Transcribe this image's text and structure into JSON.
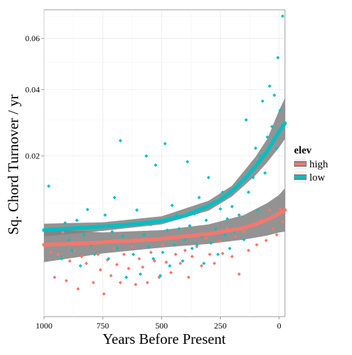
{
  "chart_data": {
    "type": "scatter",
    "xlabel": "Years Before Present",
    "ylabel": "Sq. Chord Turnover / yr",
    "x_reversed": true,
    "xlim": [
      1000,
      -25
    ],
    "x_ticks": [
      1000,
      750,
      500,
      250,
      0
    ],
    "x_tick_labels": [
      "1000",
      "750",
      "500",
      "250",
      "0"
    ],
    "y_scale": "sqrt",
    "ylim": [
      0,
      0.073
    ],
    "y_ticks": [
      0.02,
      0.04,
      0.06
    ],
    "y_tick_labels": [
      "0.02",
      "0.04",
      "0.06"
    ],
    "grid": true,
    "legend": {
      "title": "elev",
      "position": "right"
    },
    "series": [
      {
        "name": "high",
        "color": "#F8766D",
        "points": [
          [
            970,
            0.0032
          ],
          [
            955,
            0.0012
          ],
          [
            940,
            0.003
          ],
          [
            920,
            0.0055
          ],
          [
            905,
            0.001
          ],
          [
            890,
            0.0024
          ],
          [
            870,
            0.0034
          ],
          [
            855,
            0.0006
          ],
          [
            840,
            0.0028
          ],
          [
            820,
            0.0022
          ],
          [
            800,
            0.0042
          ],
          [
            790,
            0.0009
          ],
          [
            770,
            0.003
          ],
          [
            760,
            0.0017
          ],
          [
            745,
            0.0004
          ],
          [
            730,
            0.0025
          ],
          [
            715,
            0.0013
          ],
          [
            700,
            0.0036
          ],
          [
            690,
            0.0021
          ],
          [
            675,
            0.0009
          ],
          [
            660,
            0.003
          ],
          [
            640,
            0.0018
          ],
          [
            625,
            0.0038
          ],
          [
            610,
            0.0008
          ],
          [
            595,
            0.0026
          ],
          [
            580,
            0.0019
          ],
          [
            560,
            0.0009
          ],
          [
            545,
            0.0032
          ],
          [
            530,
            0.0024
          ],
          [
            510,
            0.0012
          ],
          [
            495,
            0.004
          ],
          [
            480,
            0.0023
          ],
          [
            460,
            0.0015
          ],
          [
            440,
            0.003
          ],
          [
            420,
            0.0022
          ],
          [
            400,
            0.0034
          ],
          [
            385,
            0.0012
          ],
          [
            370,
            0.0028
          ],
          [
            350,
            0.0038
          ],
          [
            330,
            0.002
          ],
          [
            310,
            0.0048
          ],
          [
            295,
            0.003
          ],
          [
            275,
            0.0022
          ],
          [
            255,
            0.0044
          ],
          [
            240,
            0.0031
          ],
          [
            220,
            0.006
          ],
          [
            200,
            0.0028
          ],
          [
            185,
            0.005
          ],
          [
            170,
            0.0014
          ],
          [
            150,
            0.0056
          ],
          [
            130,
            0.0034
          ],
          [
            110,
            0.0066
          ],
          [
            95,
            0.004
          ],
          [
            75,
            0.0072
          ],
          [
            55,
            0.0045
          ],
          [
            40,
            0.0088
          ],
          [
            25,
            0.006
          ],
          [
            10,
            0.0052
          ],
          [
            -5,
            0.009
          ],
          [
            -15,
            0.007
          ]
        ],
        "trend": [
          [
            1000,
            0.004
          ],
          [
            900,
            0.0041
          ],
          [
            800,
            0.0042
          ],
          [
            700,
            0.0044
          ],
          [
            600,
            0.0045
          ],
          [
            500,
            0.0047
          ],
          [
            400,
            0.005
          ],
          [
            300,
            0.0053
          ],
          [
            200,
            0.0058
          ],
          [
            150,
            0.0061
          ],
          [
            100,
            0.0066
          ],
          [
            50,
            0.0073
          ],
          [
            0,
            0.0082
          ],
          [
            -25,
            0.0088
          ]
        ],
        "band": [
          [
            1000,
            0.0023,
            0.006
          ],
          [
            750,
            0.0031,
            0.0055
          ],
          [
            500,
            0.0037,
            0.0058
          ],
          [
            300,
            0.0041,
            0.0066
          ],
          [
            150,
            0.0046,
            0.008
          ],
          [
            50,
            0.0051,
            0.01
          ],
          [
            0,
            0.0055,
            0.0115
          ],
          [
            -25,
            0.0056,
            0.0128
          ]
        ]
      },
      {
        "name": "low",
        "color": "#00BFC4",
        "points": [
          [
            980,
            0.0132
          ],
          [
            960,
            0.004
          ],
          [
            940,
            0.0058
          ],
          [
            925,
            0.0026
          ],
          [
            910,
            0.0068
          ],
          [
            895,
            0.0046
          ],
          [
            880,
            0.0034
          ],
          [
            860,
            0.0072
          ],
          [
            845,
            0.002
          ],
          [
            830,
            0.0052
          ],
          [
            815,
            0.0089
          ],
          [
            800,
            0.004
          ],
          [
            785,
            0.003
          ],
          [
            770,
            0.0064
          ],
          [
            755,
            0.0044
          ],
          [
            740,
            0.008
          ],
          [
            725,
            0.0026
          ],
          [
            710,
            0.0056
          ],
          [
            700,
            0.011
          ],
          [
            690,
            0.0036
          ],
          [
            675,
            0.024
          ],
          [
            665,
            0.005
          ],
          [
            650,
            0.0012
          ],
          [
            635,
            0.0046
          ],
          [
            620,
            0.003
          ],
          [
            605,
            0.0088
          ],
          [
            590,
            0.0014
          ],
          [
            575,
            0.0052
          ],
          [
            565,
            0.02
          ],
          [
            555,
            0.0038
          ],
          [
            545,
            0.0066
          ],
          [
            535,
            0.0026
          ],
          [
            525,
            0.0178
          ],
          [
            515,
            0.0048
          ],
          [
            505,
            0.0013
          ],
          [
            495,
            0.0032
          ],
          [
            485,
            0.0232
          ],
          [
            475,
            0.0058
          ],
          [
            465,
            0.002
          ],
          [
            455,
            0.0096
          ],
          [
            445,
            0.004
          ],
          [
            435,
            0.008
          ],
          [
            425,
            0.006
          ],
          [
            410,
            0.0024
          ],
          [
            400,
            0.0046
          ],
          [
            390,
            0.0186
          ],
          [
            380,
            0.0064
          ],
          [
            370,
            0.0036
          ],
          [
            360,
            0.0082
          ],
          [
            350,
            0.004
          ],
          [
            340,
            0.011
          ],
          [
            330,
            0.005
          ],
          [
            320,
            0.0022
          ],
          [
            310,
            0.0072
          ],
          [
            300,
            0.015
          ],
          [
            290,
            0.0042
          ],
          [
            280,
            0.01
          ],
          [
            270,
            0.006
          ],
          [
            260,
            0.003
          ],
          [
            250,
            0.009
          ],
          [
            240,
            0.012
          ],
          [
            230,
            0.0052
          ],
          [
            220,
            0.0074
          ],
          [
            210,
            0.0036
          ],
          [
            200,
            0.0094
          ],
          [
            190,
            0.0056
          ],
          [
            180,
            0.013
          ],
          [
            170,
            0.008
          ],
          [
            160,
            0.014
          ],
          [
            150,
            0.0046
          ],
          [
            140,
            0.03
          ],
          [
            130,
            0.012
          ],
          [
            120,
            0.0064
          ],
          [
            110,
            0.015
          ],
          [
            100,
            0.022
          ],
          [
            90,
            0.0088
          ],
          [
            80,
            0.02
          ],
          [
            70,
            0.036
          ],
          [
            60,
            0.016
          ],
          [
            50,
            0.025
          ],
          [
            40,
            0.0412
          ],
          [
            30,
            0.028
          ],
          [
            20,
            0.038
          ],
          [
            10,
            0.022
          ],
          [
            5,
            0.052
          ],
          [
            -5,
            0.033
          ],
          [
            -15,
            0.07
          ]
        ],
        "trend": [
          [
            1000,
            0.0058
          ],
          [
            900,
            0.006
          ],
          [
            800,
            0.0062
          ],
          [
            700,
            0.0064
          ],
          [
            600,
            0.0067
          ],
          [
            500,
            0.0071
          ],
          [
            400,
            0.0079
          ],
          [
            300,
            0.0095
          ],
          [
            250,
            0.0106
          ],
          [
            200,
            0.0122
          ],
          [
            150,
            0.0145
          ],
          [
            100,
            0.0175
          ],
          [
            50,
            0.0212
          ],
          [
            25,
            0.0238
          ],
          [
            0,
            0.0265
          ],
          [
            -25,
            0.029
          ]
        ],
        "band": [
          [
            1000,
            0.005,
            0.0067
          ],
          [
            750,
            0.0057,
            0.0069
          ],
          [
            500,
            0.0066,
            0.0078
          ],
          [
            300,
            0.0087,
            0.0104
          ],
          [
            200,
            0.0112,
            0.0133
          ],
          [
            100,
            0.0155,
            0.0198
          ],
          [
            50,
            0.0185,
            0.0245
          ],
          [
            0,
            0.0222,
            0.033
          ],
          [
            -25,
            0.0245,
            0.037
          ]
        ]
      }
    ]
  }
}
